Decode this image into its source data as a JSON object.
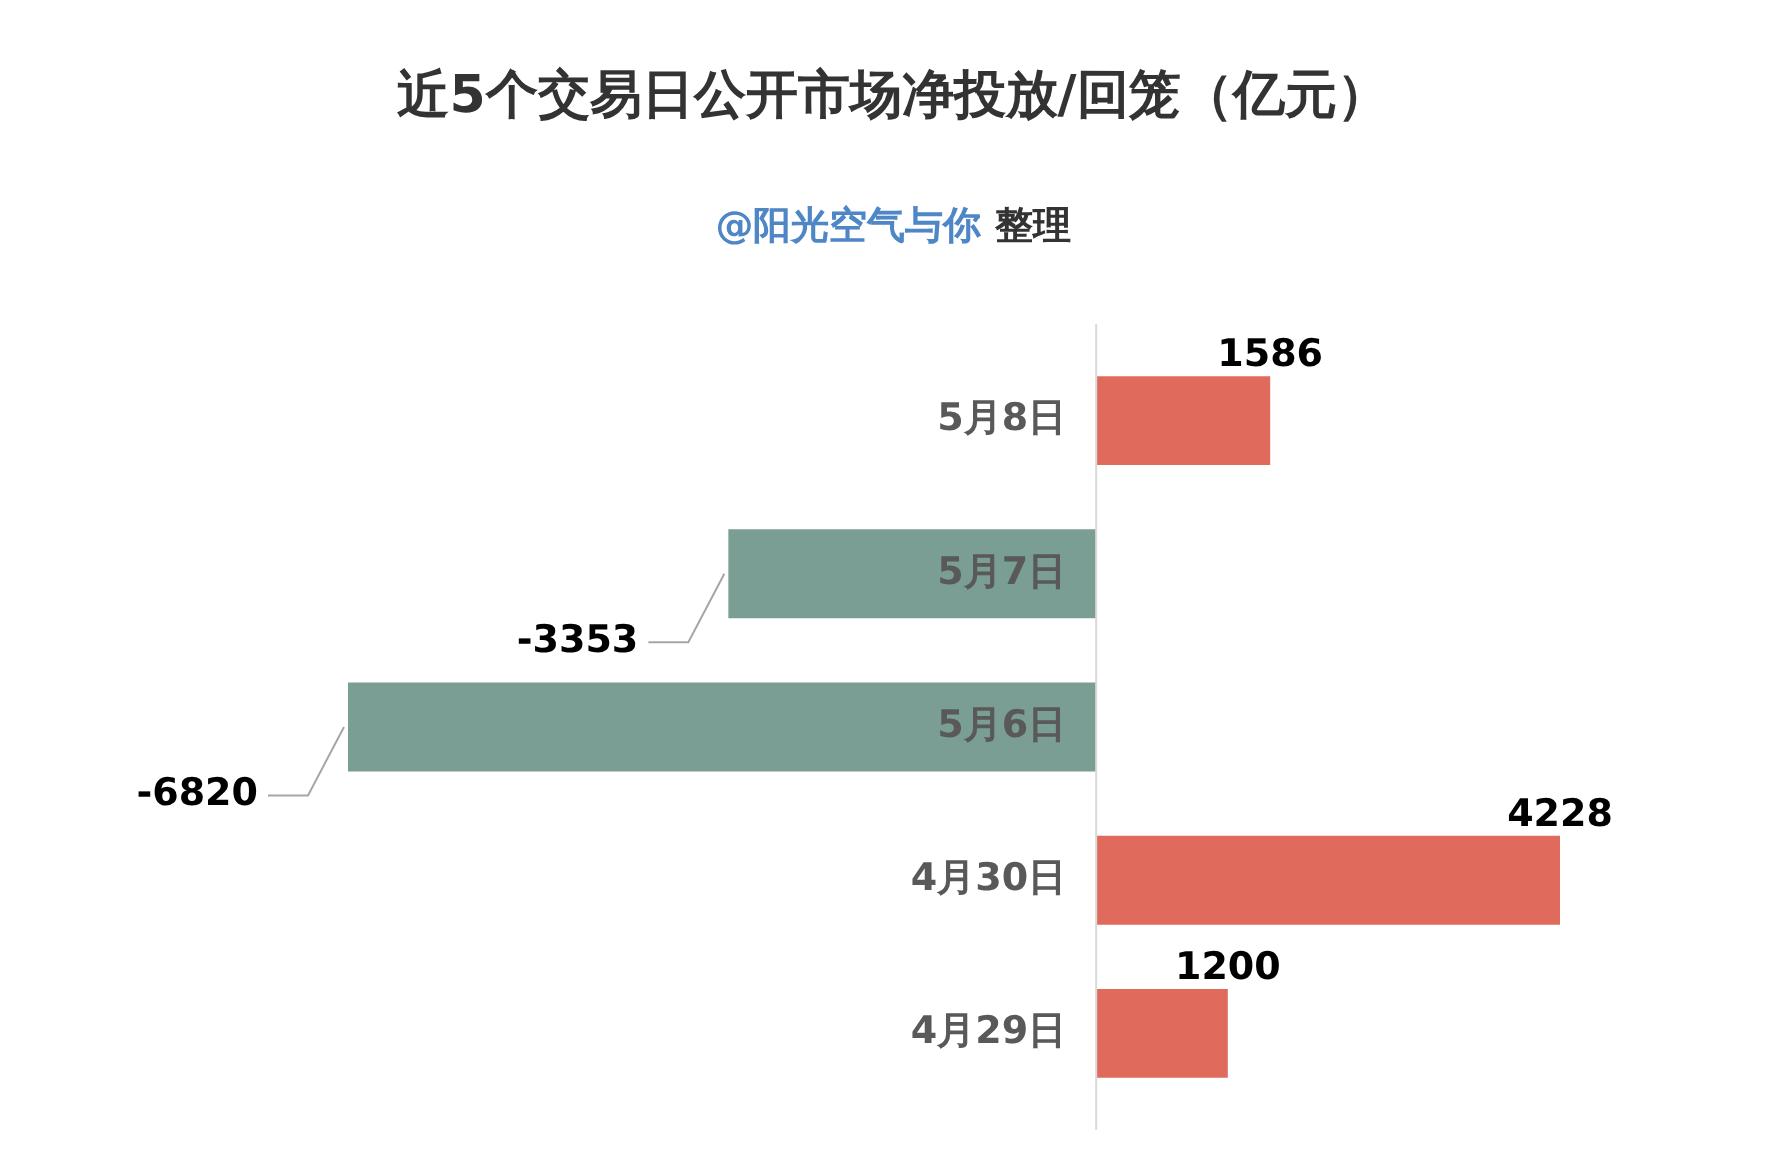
{
  "chart_data": {
    "type": "bar",
    "orientation": "horizontal",
    "title": "近5个交易日公开市场净投放/回笼（亿元）",
    "subtitle": "@阳光空气与你 整理",
    "categories": [
      "5月8日",
      "5月7日",
      "5月6日",
      "4月30日",
      "4月29日"
    ],
    "values": [
      1586,
      -3353,
      -6820,
      4228,
      1200
    ],
    "colors": [
      "#e06b5c",
      "#7a9e94",
      "#7a9e94",
      "#e06b5c",
      "#e06b5c"
    ],
    "data_labels": true
  }
}
